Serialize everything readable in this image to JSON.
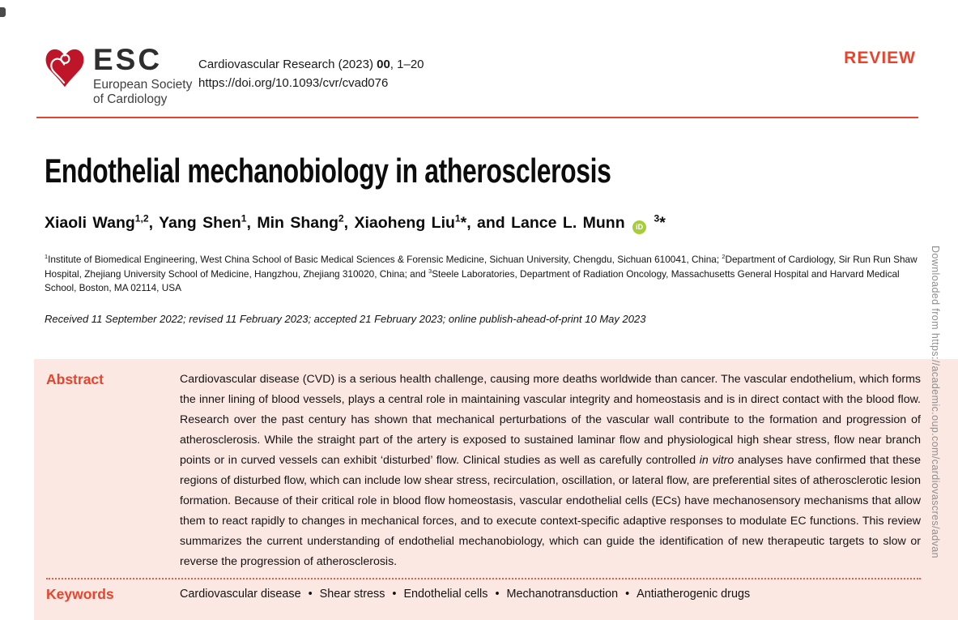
{
  "colors": {
    "accent": "#E8432C",
    "abstract_background": "#FBE8E2",
    "heart_red": "#BE1528",
    "orcid_green": "#A6CE39",
    "vertical_text_gray": "#8f8f8f"
  },
  "journal_header": {
    "logo": {
      "esc": "ESC",
      "subtitle_line1": "European Society",
      "subtitle_line2": "of Cardiology"
    },
    "citation_segments": [
      {
        "t": "Cardiovascular Research (2023) "
      },
      {
        "t": "00",
        "b": true
      },
      {
        "t": ", 1–20"
      }
    ],
    "doi": "https://doi.org/10.1093/cvr/cvad076",
    "article_type": "REVIEW"
  },
  "article": {
    "title": "Endothelial mechanobiology in atherosclerosis",
    "authors_segments": [
      {
        "t": "Xiaoli Wang"
      },
      {
        "t": "1,2",
        "sup": true
      },
      {
        "t": ", Yang Shen"
      },
      {
        "t": "1",
        "sup": true
      },
      {
        "t": ", Min Shang"
      },
      {
        "t": "2",
        "sup": true
      },
      {
        "t": ", Xiaoheng Liu"
      },
      {
        "t": "1",
        "sup": true
      },
      {
        "t": "*, and Lance L. Munn "
      },
      {
        "icon": "orcid",
        "label": "iD"
      },
      {
        "t": " "
      },
      {
        "t": "3",
        "sup": true
      },
      {
        "t": "*"
      }
    ],
    "affiliations_segments": [
      {
        "t": "1",
        "sup": true
      },
      {
        "t": "Institute of Biomedical Engineering, West China School of Basic Medical Sciences & Forensic Medicine, Sichuan University, Chengdu, Sichuan 610041, China; "
      },
      {
        "t": "2",
        "sup": true
      },
      {
        "t": "Department of Cardiology, Sir Run Run Shaw Hospital, Zhejiang University School of Medicine, Hangzhou, Zhejiang 310020, China; and "
      },
      {
        "t": "3",
        "sup": true
      },
      {
        "t": "Steele Laboratories, Department of Radiation Oncology, Massachusetts General Hospital and Harvard Medical School, Boston, MA 02114, USA"
      }
    ],
    "dates": "Received 11 September 2022; revised 11 February 2023; accepted 21 February 2023; online publish-ahead-of-print 10 May 2023"
  },
  "abstract_box": {
    "abstract_label": "Abstract",
    "abstract_segments": [
      {
        "t": "Cardiovascular disease (CVD) is a serious health challenge, causing more deaths worldwide than cancer. The vascular endothelium, which forms the inner lining of blood vessels, plays a central role in maintaining vascular integrity and homeostasis and is in direct contact with the blood flow. Research over the past century has shown that mechanical perturbations of the vascular wall contribute to the formation and progression of atherosclerosis. While the straight part of the artery is exposed to sustained laminar flow and physiological high shear stress, flow near branch points or in curved vessels can exhibit ‘disturbed’ flow. Clinical studies as well as carefully controlled "
      },
      {
        "t": "in vitro",
        "i": true
      },
      {
        "t": " analyses have confirmed that these regions of disturbed flow, which can include low shear stress, recirculation, oscillation, or lateral flow, are preferential sites of atherosclerotic lesion formation. Because of their critical role in blood flow homeostasis, vascular endothelial cells (ECs) have mechanosensory mechanisms that allow them to react rapidly to changes in mechanical forces, and to execute context-specific adaptive responses to modulate EC functions. This review summarizes the current understanding of endothelial mechanobiology, which can guide the identification of new therapeutic targets to slow or reverse the progression of atherosclerosis."
      }
    ],
    "keywords_label": "Keywords",
    "keywords": [
      "Cardiovascular disease",
      "Shear stress",
      "Endothelial cells",
      "Mechanotransduction",
      "Antiatherogenic drugs"
    ]
  },
  "watermark": {
    "vertical_text": "Downloaded from https://academic.oup.com/cardiovascres/advan"
  }
}
